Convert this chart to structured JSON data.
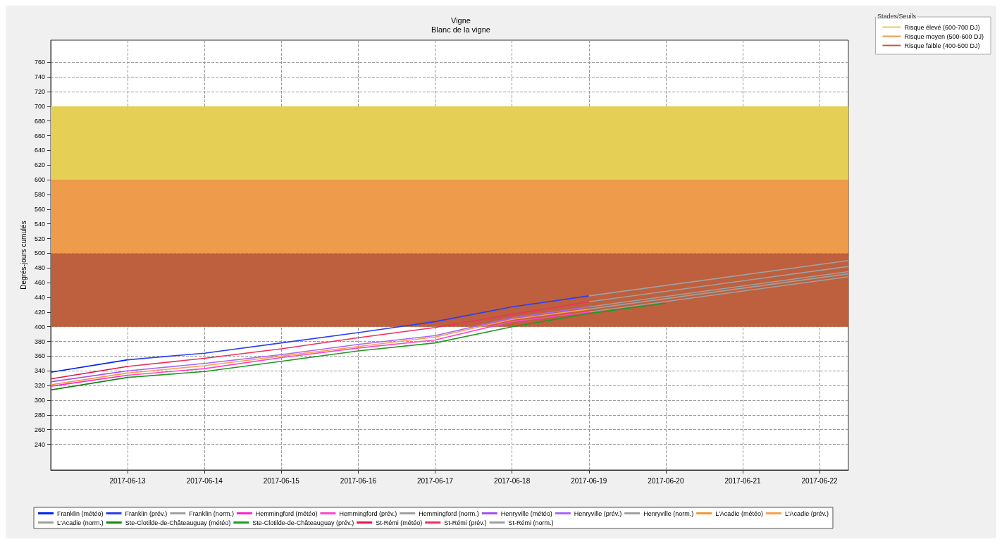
{
  "chart_data": {
    "type": "line",
    "title": "Vigne",
    "subtitle": "Blanc de la vigne",
    "ylabel": "Degrés-jours cumulés",
    "legend_title": "Stades/Seuils",
    "xlim": [
      "2017-06-12",
      "2017-06-22T09:00"
    ],
    "xticks": [
      "2017-06-13",
      "2017-06-14",
      "2017-06-15",
      "2017-06-16",
      "2017-06-17",
      "2017-06-18",
      "2017-06-19",
      "2017-06-20",
      "2017-06-21",
      "2017-06-22"
    ],
    "ylim": [
      205,
      790
    ],
    "yticks": [
      240,
      260,
      280,
      300,
      320,
      340,
      360,
      380,
      400,
      420,
      440,
      460,
      480,
      500,
      520,
      540,
      560,
      580,
      600,
      620,
      640,
      660,
      680,
      700,
      720,
      740,
      760
    ],
    "grid": true,
    "legend": "bottom",
    "marker": "none",
    "line_style": "solid",
    "bands": [
      {
        "axis": "y",
        "from": 600,
        "to": 700,
        "label": "Risque élevé (600-700 DJ)",
        "color": "#e6cf55"
      },
      {
        "axis": "y",
        "from": 500,
        "to": 600,
        "label": "Risque moyen (500-600 DJ)",
        "color": "#ef9b4c"
      },
      {
        "axis": "y",
        "from": 400,
        "to": 500,
        "label": "Risque faible (400-500 DJ)",
        "color": "#be5f3e"
      }
    ],
    "series": [
      {
        "name": "Franklin (météo)",
        "color": "#0022ee",
        "x": [
          "2017-06-12",
          "2017-06-13"
        ],
        "values": [
          338,
          355
        ]
      },
      {
        "name": "Franklin (prév.)",
        "color": "#2a3ff0",
        "x": [
          "2017-06-13",
          "2017-06-14",
          "2017-06-15",
          "2017-06-16",
          "2017-06-17",
          "2017-06-18",
          "2017-06-19"
        ],
        "values": [
          355,
          364,
          378,
          392,
          407,
          427,
          442
        ]
      },
      {
        "name": "Franklin (norm.)",
        "color": "#a0a0a0",
        "x": [
          "2017-06-19",
          "2017-06-22T09:00"
        ],
        "values": [
          442,
          490
        ]
      },
      {
        "name": "Hemmingford (météo)",
        "color": "#ff22cc",
        "x": [
          "2017-06-12",
          "2017-06-13"
        ],
        "values": [
          319,
          334
        ]
      },
      {
        "name": "Hemmingford (prév.)",
        "color": "#ff44cc",
        "x": [
          "2017-06-13",
          "2017-06-14",
          "2017-06-15",
          "2017-06-16",
          "2017-06-17",
          "2017-06-18",
          "2017-06-19"
        ],
        "values": [
          334,
          343,
          358,
          371,
          382,
          407,
          420
        ]
      },
      {
        "name": "Hemmingford (norm.)",
        "color": "#a0a0a0",
        "x": [
          "2017-06-19",
          "2017-06-22T09:00"
        ],
        "values": [
          420,
          468
        ]
      },
      {
        "name": "Henryville (météo)",
        "color": "#a050f0",
        "x": [
          "2017-06-12",
          "2017-06-13"
        ],
        "values": [
          325,
          340
        ]
      },
      {
        "name": "Henryville (prév.)",
        "color": "#a866f5",
        "x": [
          "2017-06-13",
          "2017-06-14",
          "2017-06-15",
          "2017-06-16",
          "2017-06-17",
          "2017-06-18",
          "2017-06-19"
        ],
        "values": [
          340,
          350,
          362,
          376,
          388,
          412,
          427
        ]
      },
      {
        "name": "Henryville (norm.)",
        "color": "#a0a0a0",
        "x": [
          "2017-06-19",
          "2017-06-22T09:00"
        ],
        "values": [
          427,
          475
        ]
      },
      {
        "name": "L'Acadie (météo)",
        "color": "#f5953a",
        "x": [
          "2017-06-12",
          "2017-06-13"
        ],
        "values": [
          321,
          337
        ]
      },
      {
        "name": "L'Acadie (prév.)",
        "color": "#f7a050",
        "x": [
          "2017-06-13",
          "2017-06-14",
          "2017-06-15",
          "2017-06-16",
          "2017-06-17",
          "2017-06-18",
          "2017-06-19"
        ],
        "values": [
          337,
          347,
          360,
          373,
          386,
          410,
          424
        ]
      },
      {
        "name": "L'Acadie (norm.)",
        "color": "#a0a0a0",
        "x": [
          "2017-06-19",
          "2017-06-22T09:00"
        ],
        "values": [
          424,
          472
        ]
      },
      {
        "name": "Ste-Clotilde-de-Châteauguay (météo)",
        "color": "#118811",
        "x": [
          "2017-06-12",
          "2017-06-13"
        ],
        "values": [
          314,
          331
        ]
      },
      {
        "name": "Ste-Clotilde-de-Châteauguay (prév.)",
        "color": "#229922",
        "x": [
          "2017-06-13",
          "2017-06-14",
          "2017-06-15",
          "2017-06-16",
          "2017-06-17",
          "2017-06-18",
          "2017-06-19",
          "2017-06-20"
        ],
        "values": [
          331,
          339,
          353,
          367,
          378,
          400,
          418,
          432
        ]
      },
      {
        "name": "St-Rémi (météo)",
        "color": "#ee1144",
        "x": [
          "2017-06-12",
          "2017-06-13"
        ],
        "values": [
          329,
          346
        ]
      },
      {
        "name": "St-Rémi (prév.)",
        "color": "#f0305a",
        "x": [
          "2017-06-13",
          "2017-06-14",
          "2017-06-15",
          "2017-06-16",
          "2017-06-17",
          "2017-06-18",
          "2017-06-19"
        ],
        "values": [
          346,
          357,
          370,
          385,
          399,
          417,
          434
        ]
      },
      {
        "name": "St-Rémi (norm.)",
        "color": "#a0a0a0",
        "x": [
          "2017-06-19",
          "2017-06-22T09:00"
        ],
        "values": [
          434,
          482
        ]
      }
    ]
  }
}
